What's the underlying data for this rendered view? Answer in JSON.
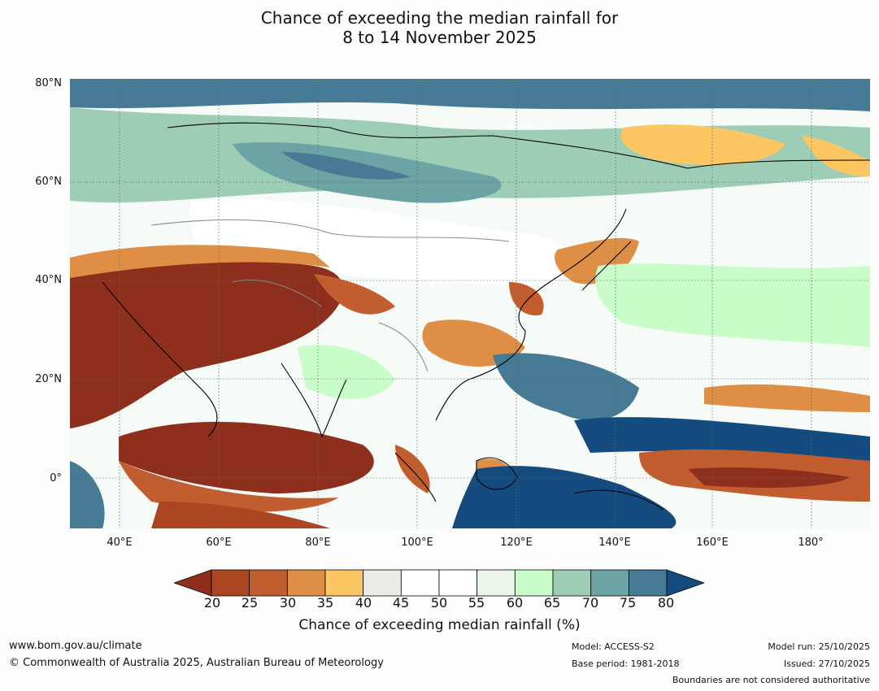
{
  "title": {
    "line1": "Chance of exceeding the median rainfall for",
    "line2": "8 to 14 November 2025"
  },
  "map": {
    "lat_labels": [
      "80°N",
      "60°N",
      "40°N",
      "20°N",
      "0°"
    ],
    "lon_labels": [
      "40°E",
      "60°E",
      "80°E",
      "100°E",
      "120°E",
      "140°E",
      "160°E",
      "180°"
    ]
  },
  "colorbar": {
    "ticks": [
      "20",
      "25",
      "30",
      "35",
      "40",
      "45",
      "50",
      "55",
      "60",
      "65",
      "70",
      "75",
      "80"
    ],
    "colors": [
      "#8e2f1d",
      "#ab4522",
      "#c25d2f",
      "#de8f45",
      "#fcc662",
      "#ecebe6",
      "#ffffff",
      "#ffffff",
      "#eaf6ea",
      "#c8fcc8",
      "#9dcdb5",
      "#6ca3a4",
      "#467a95",
      "#144c80"
    ],
    "label": "Chance of exceeding median rainfall (%)"
  },
  "footer": {
    "website": "www.bom.gov.au/climate",
    "copyright": "© Commonwealth of Australia 2025, Australian Bureau of Meteorology",
    "model": "Model: ACCESS-S2",
    "base_period": "Base period: 1981-2018",
    "model_run": "Model run: 25/10/2025",
    "issued": "Issued: 27/10/2025",
    "disclaimer": "Boundaries are not considered authoritative"
  }
}
